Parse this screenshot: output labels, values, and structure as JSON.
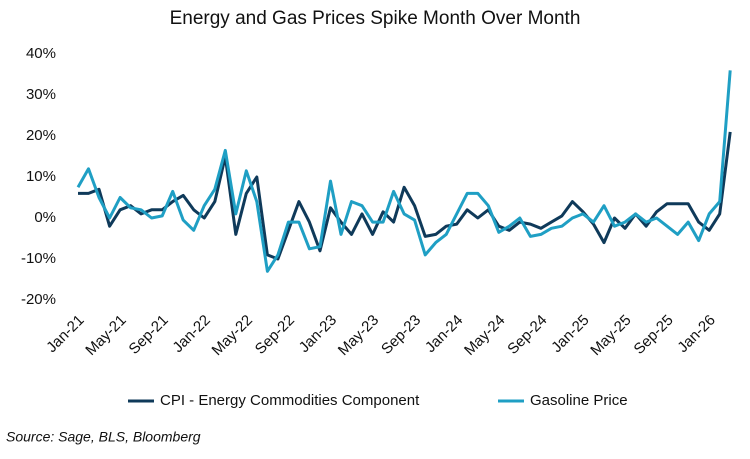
{
  "chart_data": {
    "type": "line",
    "title": "Energy and Gas Prices Spike Month Over Month",
    "source": "Source: Sage, BLS, Bloomberg",
    "categories": [
      "Jan-21",
      null,
      null,
      null,
      "May-21",
      null,
      null,
      null,
      "Sep-21",
      null,
      null,
      null,
      "Jan-22",
      null,
      null,
      null,
      "May-22",
      null,
      null,
      null,
      "Sep-22",
      null,
      null,
      null,
      "Jan-23",
      null,
      null,
      null,
      "May-23",
      null,
      null,
      null,
      "Sep-23",
      null,
      null,
      null,
      "Jan-24",
      null,
      null,
      null,
      "May-24",
      null,
      null,
      null,
      "Sep-24",
      null,
      null,
      null,
      "Jan-25",
      null,
      null,
      null,
      "May-25",
      null,
      null,
      null,
      "Sep-25",
      null,
      null,
      null,
      "Jan-26",
      null,
      null
    ],
    "series": [
      {
        "name": "CPI - Energy Commodities Component",
        "color": "#0f3a5a",
        "values": [
          6,
          6,
          7,
          -2,
          2,
          3,
          1,
          2,
          2,
          4,
          5.5,
          2,
          0,
          4,
          15,
          -4,
          6,
          10,
          -9,
          -10,
          -3,
          4,
          -1,
          -8,
          2.5,
          -1,
          -4,
          1,
          -4,
          1.5,
          -1,
          7.5,
          3,
          -4.5,
          -4,
          -2,
          -1.5,
          2,
          0,
          2,
          -2,
          -3,
          -1,
          -1.5,
          -2.5,
          -1,
          0.5,
          4,
          1.5,
          -1.5,
          -6,
          0,
          -2.5,
          1,
          -2,
          1.5,
          3.5,
          3.5,
          3.5,
          -1,
          -3,
          1,
          21
        ]
      },
      {
        "name": "Gasoline Price",
        "color": "#1f9fc4",
        "values": [
          7.5,
          12,
          5,
          0,
          5,
          2.5,
          2,
          0,
          0.5,
          6.5,
          -0.5,
          -3,
          3,
          7,
          16.5,
          1,
          11.5,
          4,
          -13,
          -9,
          -1,
          -1,
          -7.5,
          -7,
          9,
          -4,
          4,
          3,
          -1,
          -1,
          6.5,
          1,
          -0.5,
          -9,
          -6,
          -4,
          1,
          6,
          6,
          3,
          -3.5,
          -2,
          0,
          -4.5,
          -4,
          -2.5,
          -2,
          0,
          1,
          -1,
          3,
          -2,
          -1,
          1,
          -1,
          0,
          -2,
          -4,
          -1,
          -5.5,
          1,
          4,
          36
        ]
      }
    ],
    "ylim": [
      -20,
      40
    ],
    "yticks": [
      {
        "value": -20,
        "label": "-20%"
      },
      {
        "value": -10,
        "label": "-10%"
      },
      {
        "value": 0,
        "label": "0%"
      },
      {
        "value": 10,
        "label": "10%"
      },
      {
        "value": 20,
        "label": "20%"
      },
      {
        "value": 30,
        "label": "30%"
      },
      {
        "value": 40,
        "label": "40%"
      }
    ],
    "grid": false,
    "legend": "bottom"
  }
}
